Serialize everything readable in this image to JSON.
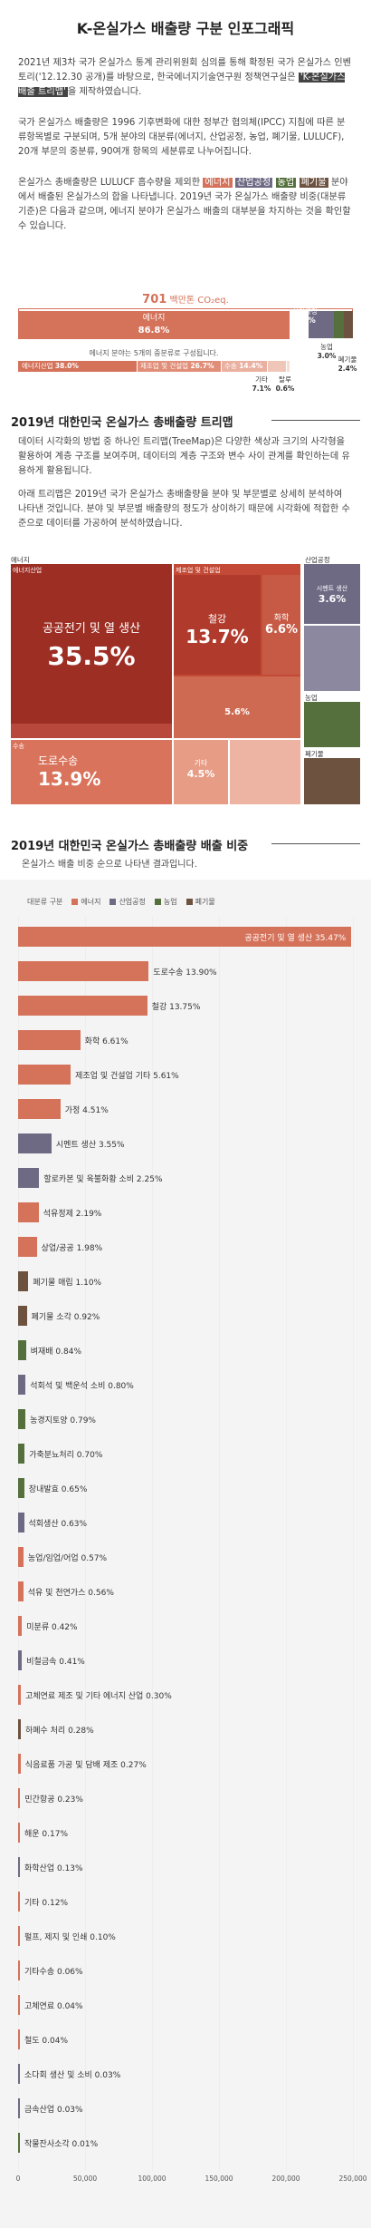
{
  "header": {
    "title": "K-온실가스 배출량 구분 인포그래픽"
  },
  "intro": {
    "p1_a": "2021년 제3차 국가 온실가스 통계 관리위원회 심의를 통해 확정된 국가 온실가스 인벤토리('12.12.30 공개)를 바탕으로, 한국에너지기술연구원 정책연구실은 ",
    "p1_hl": "'K-온실가스 배출 트리맵'",
    "p1_b": "을 제작하였습니다.",
    "p2": "국가 온실가스 배출량은 1996 기후변화에 대한 정부간 협의체(IPCC) 지침에 따른 분류항목별로 구분되며, 5개 분야의 대분류(에너지, 산업공정, 농업, 폐기물, LULUCF), 20개 부문의 중분류, 90여개 항목의 세분류로 나누어집니다.",
    "p3_a": "온실가스 총배출량은 LULUCF 흡수량을 제외한 ",
    "hl_energy": "에너지",
    "hl_industry": "산업공정",
    "hl_agri": "농업",
    "hl_waste": "폐기물",
    "p3_b": " 분야에서 배출된 온실가스의 합을 나타냅니다. 2019년 국가 온실가스 배출량 비중(대분류 기준)은 다음과 같으며, 에너지 분야가 온실가스 배출의 대부분을 차지하는 것을 확인할 수 있습니다."
  },
  "summary": {
    "total_value": "701",
    "total_unit": "백만톤 CO₂eq.",
    "energy_label": "에너지",
    "energy_pct": "86.8%",
    "industry_label": "산업공정",
    "industry_pct": "7.8%",
    "agri_label": "농업",
    "agri_pct": "3.0%",
    "waste_label": "폐기물",
    "waste_pct": "2.4%",
    "energy_sub_note": "에너지 분야는 5개의 중분류로 구성됩니다.",
    "sub_items": [
      {
        "label": "에너지산업",
        "pct": "38.0%"
      },
      {
        "label": "제조업 및 건설업",
        "pct": "26.7%"
      },
      {
        "label": "수송",
        "pct": "14.4%"
      },
      {
        "label": "기타",
        "pct": "7.1%"
      },
      {
        "label": "탈루",
        "pct": "0.6%"
      }
    ]
  },
  "treemap_section": {
    "title": "2019년 대한민국 온실가스 총배출량 트리맵",
    "p1": "데이터 시각화의 방법 중 하나인 트리맵(TreeMap)은 다양한 색상과 크기의 사각형을 활용하여 계층 구조를 보여주며, 데이터의 계층 구조와 변수 사이 관계를 확인하는데 유용하게 활용됩니다.",
    "p2": "아래 트리맵은 2019년 국가 온실가스 총배출량을 분야 및 부문별로 상세히 분석하여 나타낸 것입니다. 분야 및 부문별 배출량의 정도가 상이하기 때문에 시각화에 적합한 수준으로 데이터를 가공하여 분석하였습니다.",
    "group_energy": "에너지",
    "group_industry": "산업공정",
    "group_agri": "농업",
    "group_waste": "폐기물",
    "sub_energy_industry": "에너지산업",
    "sub_manufacturing": "제조업 및 건설업",
    "sub_transport": "수송",
    "cell_power": "공공전기 및 열 생산",
    "cell_power_pct": "35.5%",
    "cell_steel": "철강",
    "cell_steel_pct": "13.7%",
    "cell_chem": "화학",
    "cell_chem_pct": "6.6%",
    "cell_mfg_other_pct": "5.6%",
    "cell_road": "도로수송",
    "cell_road_pct": "13.9%",
    "cell_other": "기타",
    "cell_other_pct": "4.5%",
    "cell_cement": "시멘트 생산",
    "cell_cement_pct": "3.6%"
  },
  "bar_section": {
    "title": "2019년 대한민국 온실가스 총배출량 배출 비중",
    "subtitle": "온실가스 배출 비중 순으로 나타낸 결과입니다.",
    "legend_title": "대분류 구분",
    "legend": [
      {
        "label": "에너지",
        "color": "#d4725a"
      },
      {
        "label": "산업공정",
        "color": "#6e6a84"
      },
      {
        "label": "농업",
        "color": "#55703d"
      },
      {
        "label": "폐기물",
        "color": "#6d5240"
      }
    ]
  },
  "chart_data": {
    "type": "bar",
    "orientation": "horizontal",
    "xlim": [
      0,
      250000
    ],
    "xticks": [
      "0",
      "50,000",
      "100,000",
      "150,000",
      "200,000",
      "250,000"
    ],
    "bars": [
      {
        "label": "공공전기 및 열 생산 35.47%",
        "value": 248900,
        "group": "에너지"
      },
      {
        "label": "도로수송 13.90%",
        "value": 97500,
        "group": "에너지"
      },
      {
        "label": "철강 13.75%",
        "value": 96400,
        "group": "에너지"
      },
      {
        "label": "화학 6.61%",
        "value": 46400,
        "group": "에너지"
      },
      {
        "label": "제조업 및 건설업 기타 5.61%",
        "value": 39300,
        "group": "에너지"
      },
      {
        "label": "가정 4.51%",
        "value": 31600,
        "group": "에너지"
      },
      {
        "label": "시멘트 생산 3.55%",
        "value": 24900,
        "group": "산업공정"
      },
      {
        "label": "할로카본 및 육불화황 소비 2.25%",
        "value": 15800,
        "group": "산업공정"
      },
      {
        "label": "석유정제 2.19%",
        "value": 15400,
        "group": "에너지"
      },
      {
        "label": "상업/공공 1.98%",
        "value": 13900,
        "group": "에너지"
      },
      {
        "label": "폐기물 매립 1.10%",
        "value": 7700,
        "group": "폐기물"
      },
      {
        "label": "폐기물 소각 0.92%",
        "value": 6500,
        "group": "폐기물"
      },
      {
        "label": "벼재배 0.84%",
        "value": 5900,
        "group": "농업"
      },
      {
        "label": "석회석 및 백운석 소비 0.80%",
        "value": 5600,
        "group": "산업공정"
      },
      {
        "label": "농경지토양 0.79%",
        "value": 5500,
        "group": "농업"
      },
      {
        "label": "가축분뇨처리 0.70%",
        "value": 4900,
        "group": "농업"
      },
      {
        "label": "장내발효 0.65%",
        "value": 4600,
        "group": "농업"
      },
      {
        "label": "석회생산 0.63%",
        "value": 4400,
        "group": "산업공정"
      },
      {
        "label": "농업/임업/어업 0.57%",
        "value": 4000,
        "group": "에너지"
      },
      {
        "label": "석유 및 천연가스 0.56%",
        "value": 3900,
        "group": "에너지"
      },
      {
        "label": "미분류 0.42%",
        "value": 2900,
        "group": "에너지"
      },
      {
        "label": "비철금속 0.41%",
        "value": 2900,
        "group": "산업공정"
      },
      {
        "label": "고체연료 제조 및 기타 에너지 산업 0.30%",
        "value": 2100,
        "group": "에너지"
      },
      {
        "label": "하폐수 처리 0.28%",
        "value": 2000,
        "group": "폐기물"
      },
      {
        "label": "식음료품 가공 및 담배 제조 0.27%",
        "value": 1900,
        "group": "에너지"
      },
      {
        "label": "민간항공 0.23%",
        "value": 1600,
        "group": "에너지"
      },
      {
        "label": "해운 0.17%",
        "value": 1200,
        "group": "에너지"
      },
      {
        "label": "화학산업 0.13%",
        "value": 900,
        "group": "산업공정"
      },
      {
        "label": "기타 0.12%",
        "value": 850,
        "group": "에너지"
      },
      {
        "label": "펄프, 제지 및 인쇄 0.10%",
        "value": 700,
        "group": "에너지"
      },
      {
        "label": "기타수송 0.06%",
        "value": 420,
        "group": "에너지"
      },
      {
        "label": "고체연료 0.04%",
        "value": 280,
        "group": "에너지"
      },
      {
        "label": "철도 0.04%",
        "value": 280,
        "group": "에너지"
      },
      {
        "label": "소다회 생산 및 소비 0.03%",
        "value": 210,
        "group": "산업공정"
      },
      {
        "label": "금속산업 0.03%",
        "value": 210,
        "group": "산업공정"
      },
      {
        "label": "작물잔사소각 0.01%",
        "value": 70,
        "group": "농업"
      }
    ]
  }
}
